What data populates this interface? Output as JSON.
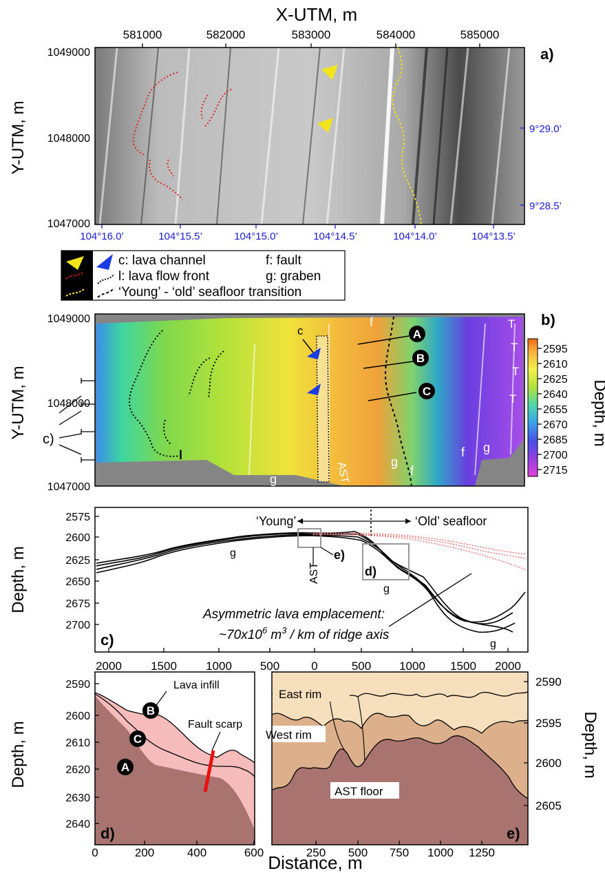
{
  "panel_a": {
    "letter": "a)",
    "x_axis_title": "X-UTM, m",
    "y_axis_title": "Y-UTM, m",
    "x_ticks": [
      "581000",
      "582000",
      "583000",
      "584000",
      "585000"
    ],
    "y_ticks": [
      "1049000",
      "1048000",
      "1047000"
    ],
    "lon_ticks": [
      "104°16.0’",
      "104°15.5’",
      "104°15.0’",
      "104°14.5’",
      "104°14.0’",
      "104°13.5’"
    ],
    "lat_ticks": [
      "9°29.0’",
      "9°28.5’"
    ]
  },
  "legend": {
    "c_label": "c: lava channel",
    "l_label": "l: lava flow front",
    "transition_label": "‘Young’ - ‘old’ seafloor transition",
    "f_label": "f: fault",
    "g_label": "g: graben"
  },
  "panel_b": {
    "letter": "b)",
    "y_axis_title": "Y-UTM, m",
    "y_ticks": [
      "1049000",
      "1048000",
      "1047000"
    ],
    "colorbar_title": "Depth, m",
    "colorbar_ticks": [
      "2595",
      "2610",
      "2625",
      "2640",
      "2655",
      "2670",
      "2685",
      "2700",
      "2715"
    ],
    "profile_markers": [
      "A",
      "B",
      "C"
    ],
    "c_label": "c)",
    "feature_labels": {
      "c": "c",
      "f": "f",
      "g": "g",
      "l": "l",
      "ast": "AST",
      "t": "T"
    }
  },
  "panel_c": {
    "letter": "c)",
    "y_axis_title": "Depth, m",
    "y_ticks": [
      "2575",
      "2600",
      "2625",
      "2650",
      "2675",
      "2700"
    ],
    "x_ticks": [
      "2000",
      "1500",
      "1000",
      "500",
      "0",
      "500",
      "1000",
      "1500",
      "2000"
    ],
    "young_label": "‘Young’",
    "old_label": "‘Old’ seafloor",
    "ast_label": "AST",
    "g_label": "g",
    "d_box_label": "d)",
    "e_box_label": "e)",
    "annotation_line1": "Asymmetric lava emplacement:",
    "annotation_line2": "~70x10",
    "annotation_exp1": "6",
    "annotation_mid": "  m",
    "annotation_exp2": "3",
    "annotation_end": " / km of ridge axis"
  },
  "panel_d": {
    "letter": "d)",
    "y_axis_title": "Depth, m",
    "y_ticks": [
      "2590",
      "2600",
      "2610",
      "2620",
      "2630",
      "2640"
    ],
    "x_ticks": [
      "0",
      "200",
      "400",
      "600"
    ],
    "lava_infill": "Lava infill",
    "fault_scarp": "Fault scarp",
    "markers": [
      "A",
      "B",
      "C"
    ]
  },
  "panel_e": {
    "letter": "e)",
    "y_axis_title": "Depth, m",
    "y_ticks": [
      "2590",
      "2595",
      "2600",
      "2605"
    ],
    "x_ticks": [
      "250",
      "500",
      "750",
      "1000",
      "1250"
    ],
    "east_rim": "East rim",
    "west_rim": "West rim",
    "ast_floor": "AST floor"
  },
  "bottom_x_title": "Distance, m",
  "colors": {
    "panel_d_dark": "#a9746f",
    "panel_d_light": "#f6bcbc",
    "panel_e_light": "#f5dfbd",
    "panel_e_mid": "#dcb08b",
    "panel_e_dark": "#a9746f",
    "blue_latlon": "#1a1adc",
    "yellow_marker": "#f3e51c"
  }
}
